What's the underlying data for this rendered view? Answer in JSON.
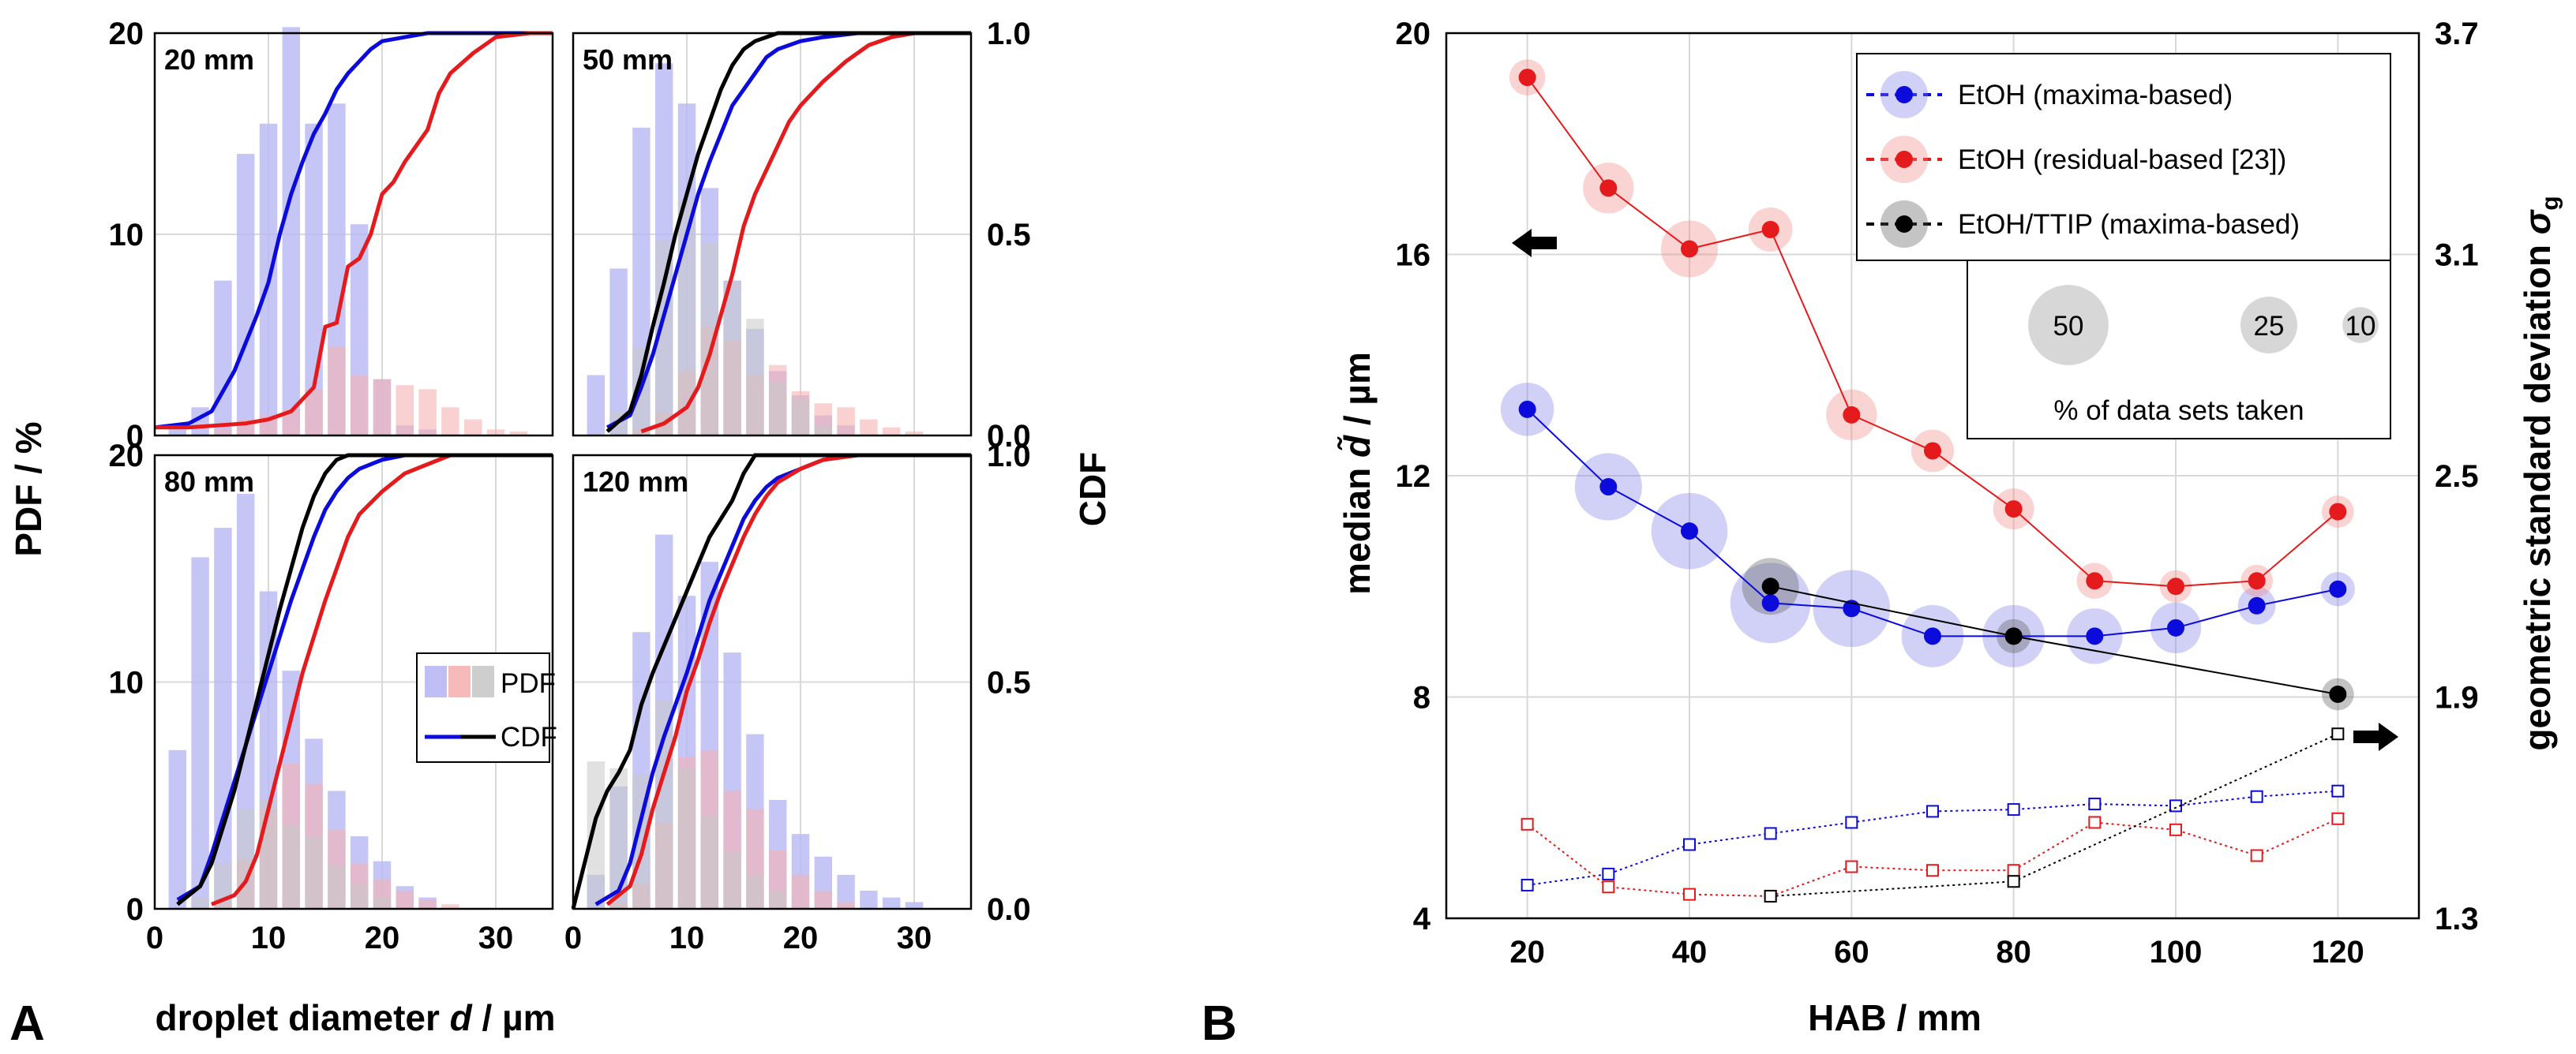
{
  "colors": {
    "blue": "#0b0bdc",
    "red": "#e41a1c",
    "black": "#000000",
    "blue_fill": "#b8b8f4",
    "red_fill": "#f6b3b3",
    "gray_fill": "#c9c9c9"
  },
  "panel_a": {
    "label": "A",
    "xlabel_prefix": "droplet diameter ",
    "xlabel_var": "d",
    "xlabel_suffix": " / µm",
    "ylabel_left": "PDF / %",
    "ylabel_right": "CDF",
    "x_ticks": [
      "0",
      "10",
      "20",
      "30"
    ],
    "y_ticks": [
      "0",
      "10",
      "20"
    ],
    "cdf_ticks": [
      "0.0",
      "0.5",
      "1.0"
    ],
    "legend": {
      "pdf_label": "PDF",
      "cdf_label": "CDF"
    }
  },
  "panel_b": {
    "label": "B",
    "xlabel": "HAB / mm",
    "ylabel_left_prefix": "median ",
    "ylabel_left_var": "d̃",
    "ylabel_left_suffix": " / µm",
    "ylabel_right_text": "geometric standard deviation ",
    "ylabel_right_var": "σ",
    "ylabel_right_sub": "g",
    "x_ticks": [
      "20",
      "40",
      "60",
      "80",
      "100",
      "120"
    ],
    "y_ticks": [
      "4",
      "8",
      "12",
      "16",
      "20"
    ],
    "y2_ticks": [
      "1.3",
      "1.9",
      "2.5",
      "3.1",
      "3.7"
    ],
    "legend": {
      "entries": [
        "EtOH (maxima-based)",
        "EtOH (residual-based [23])",
        "EtOH/TTIP (maxima-based)"
      ],
      "size_labels": [
        "50",
        "25",
        "10"
      ],
      "size_caption": "% of data sets taken"
    }
  },
  "chart_data": [
    {
      "type": "bar",
      "title": "20 mm",
      "bin_centers": [
        2,
        4,
        6,
        8,
        10,
        12,
        14,
        16,
        18,
        20,
        22,
        24,
        26,
        28,
        30,
        32
      ],
      "series": [
        {
          "name": "EtOH (maxima-based) PDF",
          "values": [
            0.3,
            1.4,
            7.7,
            14,
            15.5,
            20.3,
            15.5,
            16.5,
            10.5,
            2.8,
            0.5,
            0.3,
            0,
            0,
            0,
            0
          ]
        },
        {
          "name": "EtOH (residual-based) PDF",
          "values": [
            0,
            0,
            0.3,
            0.8,
            1,
            1.3,
            2.3,
            4.4,
            3,
            2.8,
            2.5,
            2.3,
            1.4,
            0.8,
            0.3,
            0.2
          ]
        }
      ],
      "cdf": [
        {
          "name": "EtOH (maxima-based) CDF",
          "x": [
            0,
            3,
            5,
            7,
            9,
            10,
            11,
            12,
            13,
            14,
            15,
            16,
            17,
            18,
            19,
            20,
            22,
            24,
            26
          ],
          "y": [
            0.02,
            0.03,
            0.06,
            0.16,
            0.3,
            0.38,
            0.5,
            0.6,
            0.68,
            0.75,
            0.8,
            0.86,
            0.9,
            0.93,
            0.96,
            0.98,
            0.99,
            1,
            1
          ]
        },
        {
          "name": "EtOH (residual-based) CDF",
          "x": [
            0,
            3,
            8,
            10,
            12,
            14,
            15,
            16,
            17,
            18,
            19,
            20,
            21,
            22,
            23,
            24,
            25,
            26,
            28,
            30,
            33
          ],
          "y": [
            0.02,
            0.02,
            0.03,
            0.04,
            0.06,
            0.12,
            0.27,
            0.28,
            0.42,
            0.44,
            0.5,
            0.6,
            0.63,
            0.68,
            0.72,
            0.76,
            0.85,
            0.9,
            0.95,
            0.99,
            1
          ]
        }
      ],
      "xlim": [
        0,
        35
      ],
      "ylim": [
        0,
        20
      ],
      "y2lim": [
        0,
        1
      ]
    },
    {
      "type": "bar",
      "title": "50 mm",
      "bin_centers": [
        2,
        4,
        6,
        8,
        10,
        12,
        14,
        16,
        18,
        20,
        22,
        24,
        26,
        28,
        30
      ],
      "series": [
        {
          "name": "EtOH (maxima-based) PDF",
          "values": [
            3,
            8.3,
            15.3,
            18.5,
            16.5,
            12.3,
            7.7,
            5.3,
            3.2,
            2,
            1,
            0.5,
            0,
            0,
            0
          ]
        },
        {
          "name": "EtOH (residual-based) PDF",
          "values": [
            0,
            0,
            0.3,
            1.1,
            3.2,
            5.4,
            4.7,
            3,
            3.5,
            2.2,
            1.6,
            1.4,
            0.8,
            0.4,
            0.2
          ]
        },
        {
          "name": "EtOH/TTIP (maxima-based) PDF",
          "values": [
            0,
            1.2,
            4.4,
            9.7,
            11.7,
            9.6,
            7.7,
            5.8,
            2.7,
            1.8,
            0.5,
            0,
            0,
            0,
            0
          ]
        }
      ],
      "cdf": [
        {
          "name": "EtOH (maxima-based) CDF",
          "x": [
            3,
            5,
            6,
            7,
            8,
            9,
            10,
            11,
            12,
            13,
            14,
            15,
            16,
            17,
            18,
            20,
            22,
            25,
            28
          ],
          "y": [
            0.02,
            0.05,
            0.12,
            0.2,
            0.3,
            0.4,
            0.5,
            0.6,
            0.68,
            0.75,
            0.82,
            0.86,
            0.9,
            0.94,
            0.96,
            0.98,
            0.99,
            1,
            1
          ]
        },
        {
          "name": "EtOH (residual-based) CDF",
          "x": [
            6,
            8,
            10,
            11,
            12,
            13,
            14,
            15,
            16,
            17,
            18,
            19,
            20,
            22,
            24,
            26,
            28,
            30,
            33
          ],
          "y": [
            0.01,
            0.03,
            0.07,
            0.12,
            0.2,
            0.3,
            0.4,
            0.52,
            0.6,
            0.66,
            0.72,
            0.78,
            0.82,
            0.88,
            0.93,
            0.97,
            0.99,
            1,
            1
          ]
        },
        {
          "name": "EtOH/TTIP (maxima-based) CDF",
          "x": [
            3,
            5,
            6,
            7,
            8,
            9,
            10,
            11,
            12,
            13,
            14,
            15,
            16,
            18
          ],
          "y": [
            0.01,
            0.06,
            0.15,
            0.27,
            0.38,
            0.5,
            0.6,
            0.7,
            0.78,
            0.86,
            0.92,
            0.96,
            0.98,
            1
          ]
        }
      ],
      "xlim": [
        0,
        35
      ],
      "ylim": [
        0,
        20
      ],
      "y2lim": [
        0,
        1
      ]
    },
    {
      "type": "bar",
      "title": "80 mm",
      "bin_centers": [
        2,
        4,
        6,
        8,
        10,
        12,
        14,
        16,
        18,
        20,
        22,
        24,
        26,
        28,
        30
      ],
      "series": [
        {
          "name": "EtOH (maxima-based) PDF",
          "values": [
            7,
            15.5,
            16.8,
            18.3,
            14,
            10.5,
            7.5,
            5.2,
            3.2,
            2.1,
            1,
            0.5,
            0,
            0,
            0
          ]
        },
        {
          "name": "EtOH (residual-based) PDF",
          "values": [
            0,
            0,
            0.3,
            2.2,
            4.4,
            6.4,
            5.5,
            3.5,
            2,
            1.3,
            0.8,
            0.4,
            0.2,
            0,
            0
          ]
        },
        {
          "name": "EtOH/TTIP (maxima-based) PDF",
          "values": [
            0,
            0.5,
            2,
            4.4,
            4.8,
            3.7,
            3.2,
            1.9,
            1.1,
            0.5,
            0,
            0,
            0,
            0,
            0
          ]
        }
      ],
      "cdf": [
        {
          "name": "EtOH (maxima-based) CDF",
          "x": [
            2,
            4,
            5,
            6,
            7,
            8,
            9,
            10,
            11,
            12,
            13,
            14,
            15,
            16,
            17,
            18,
            20,
            22,
            24
          ],
          "y": [
            0.02,
            0.05,
            0.12,
            0.2,
            0.28,
            0.36,
            0.44,
            0.52,
            0.6,
            0.68,
            0.75,
            0.82,
            0.88,
            0.92,
            0.95,
            0.97,
            0.99,
            1,
            1
          ]
        },
        {
          "name": "EtOH (residual-based) CDF",
          "x": [
            5,
            7,
            8,
            9,
            10,
            11,
            12,
            13,
            14,
            15,
            16,
            17,
            18,
            20,
            22,
            24,
            26,
            28
          ],
          "y": [
            0.01,
            0.03,
            0.06,
            0.12,
            0.22,
            0.32,
            0.42,
            0.52,
            0.6,
            0.68,
            0.75,
            0.82,
            0.87,
            0.92,
            0.96,
            0.98,
            1,
            1
          ]
        },
        {
          "name": "EtOH/TTIP (maxima-based) CDF",
          "x": [
            2,
            4,
            5,
            6,
            7,
            8,
            9,
            10,
            11,
            12,
            13,
            14,
            15,
            16,
            17
          ],
          "y": [
            0.01,
            0.05,
            0.1,
            0.18,
            0.26,
            0.36,
            0.46,
            0.56,
            0.66,
            0.75,
            0.84,
            0.91,
            0.96,
            0.99,
            1
          ]
        }
      ],
      "xlim": [
        0,
        35
      ],
      "ylim": [
        0,
        20
      ],
      "y2lim": [
        0,
        1
      ]
    },
    {
      "type": "bar",
      "title": "120 mm",
      "bin_centers": [
        2,
        4,
        6,
        8,
        10,
        12,
        14,
        16,
        18,
        20,
        22,
        24,
        26,
        28,
        30
      ],
      "series": [
        {
          "name": "EtOH (maxima-based) PDF",
          "values": [
            1.5,
            5.4,
            12.2,
            16.5,
            13.8,
            15.3,
            11.3,
            7.7,
            4.8,
            3.3,
            2.3,
            1.5,
            0.8,
            0.5,
            0.3
          ]
        },
        {
          "name": "EtOH (residual-based) PDF",
          "values": [
            0,
            0.3,
            1.1,
            3.8,
            6.7,
            7,
            5.2,
            4.4,
            2.6,
            1.5,
            0.8,
            0.3,
            0,
            0,
            0
          ]
        },
        {
          "name": "EtOH/TTIP (maxima-based) PDF",
          "values": [
            6.5,
            6.2,
            5.9,
            9.2,
            6.2,
            4.1,
            2.5,
            1.5,
            0.8,
            0,
            0,
            0,
            0,
            0,
            0
          ]
        }
      ],
      "cdf": [
        {
          "name": "EtOH (maxima-based) CDF",
          "x": [
            2,
            4,
            5,
            6,
            7,
            8,
            9,
            10,
            11,
            12,
            13,
            14,
            15,
            16,
            17,
            18,
            20,
            22,
            25,
            28
          ],
          "y": [
            0.01,
            0.04,
            0.1,
            0.2,
            0.3,
            0.38,
            0.45,
            0.52,
            0.6,
            0.68,
            0.74,
            0.8,
            0.86,
            0.9,
            0.93,
            0.95,
            0.97,
            0.99,
            1,
            1
          ]
        },
        {
          "name": "EtOH (residual-based) CDF",
          "x": [
            3,
            5,
            6,
            7,
            8,
            9,
            10,
            11,
            12,
            13,
            14,
            15,
            16,
            17,
            18,
            20,
            22,
            25,
            28
          ],
          "y": [
            0.01,
            0.05,
            0.12,
            0.22,
            0.3,
            0.38,
            0.48,
            0.55,
            0.63,
            0.7,
            0.76,
            0.82,
            0.87,
            0.91,
            0.94,
            0.97,
            0.99,
            1,
            1
          ]
        },
        {
          "name": "EtOH/TTIP (maxima-based) CDF",
          "x": [
            0,
            1,
            2,
            3,
            4,
            5,
            6,
            7,
            8,
            9,
            10,
            11,
            12,
            13,
            14,
            15,
            16
          ],
          "y": [
            0.0,
            0.1,
            0.2,
            0.26,
            0.3,
            0.35,
            0.45,
            0.52,
            0.58,
            0.64,
            0.7,
            0.76,
            0.82,
            0.86,
            0.9,
            0.96,
            1
          ]
        }
      ],
      "xlim": [
        0,
        35
      ],
      "ylim": [
        0,
        20
      ],
      "y2lim": [
        0,
        1
      ]
    },
    {
      "type": "scatter",
      "title": "",
      "xlabel": "HAB / mm",
      "ylabel": "median d̃ / µm",
      "y2label": "geometric standard deviation σg",
      "xlim": [
        10,
        130
      ],
      "ylim": [
        4,
        20
      ],
      "y2lim": [
        1.3,
        3.7
      ],
      "series": [
        {
          "name": "EtOH (maxima-based) median",
          "axis": "left",
          "x": [
            20,
            30,
            40,
            50,
            60,
            70,
            80,
            90,
            100,
            110,
            120
          ],
          "y": [
            13.2,
            11.8,
            11.0,
            9.7,
            9.6,
            9.1,
            9.1,
            9.1,
            9.25,
            9.65,
            9.95
          ],
          "pct": [
            22,
            35,
            45,
            50,
            46,
            30,
            30,
            24,
            20,
            11,
            9
          ]
        },
        {
          "name": "EtOH (residual-based [23]) median",
          "axis": "left",
          "x": [
            20,
            30,
            40,
            50,
            60,
            70,
            80,
            90,
            100,
            110,
            120
          ],
          "y": [
            19.2,
            17.2,
            16.1,
            16.45,
            13.1,
            12.45,
            11.4,
            10.1,
            10.0,
            10.1,
            11.35
          ],
          "pct": [
            10,
            20,
            25,
            15,
            20,
            14,
            13,
            10,
            8,
            8,
            8
          ]
        },
        {
          "name": "EtOH/TTIP (maxima-based) median",
          "axis": "left",
          "x": [
            50,
            80,
            120
          ],
          "y": [
            10.0,
            9.1,
            8.05
          ],
          "pct": [
            25,
            9,
            8
          ]
        },
        {
          "name": "EtOH (maxima-based) sigma_g",
          "axis": "right",
          "x": [
            20,
            30,
            40,
            50,
            60,
            70,
            80,
            90,
            100,
            110,
            120
          ],
          "y": [
            1.39,
            1.42,
            1.5,
            1.53,
            1.56,
            1.59,
            1.595,
            1.61,
            1.605,
            1.63,
            1.645
          ]
        },
        {
          "name": "EtOH (residual-based [23]) sigma_g",
          "axis": "right",
          "x": [
            20,
            30,
            40,
            50,
            60,
            70,
            80,
            90,
            100,
            110,
            120
          ],
          "y": [
            1.555,
            1.385,
            1.365,
            1.36,
            1.44,
            1.43,
            1.43,
            1.56,
            1.54,
            1.47,
            1.57
          ]
        },
        {
          "name": "EtOH/TTIP (maxima-based) sigma_g",
          "axis": "right",
          "x": [
            50,
            80,
            120
          ],
          "y": [
            1.36,
            1.4,
            1.8
          ]
        }
      ]
    }
  ]
}
